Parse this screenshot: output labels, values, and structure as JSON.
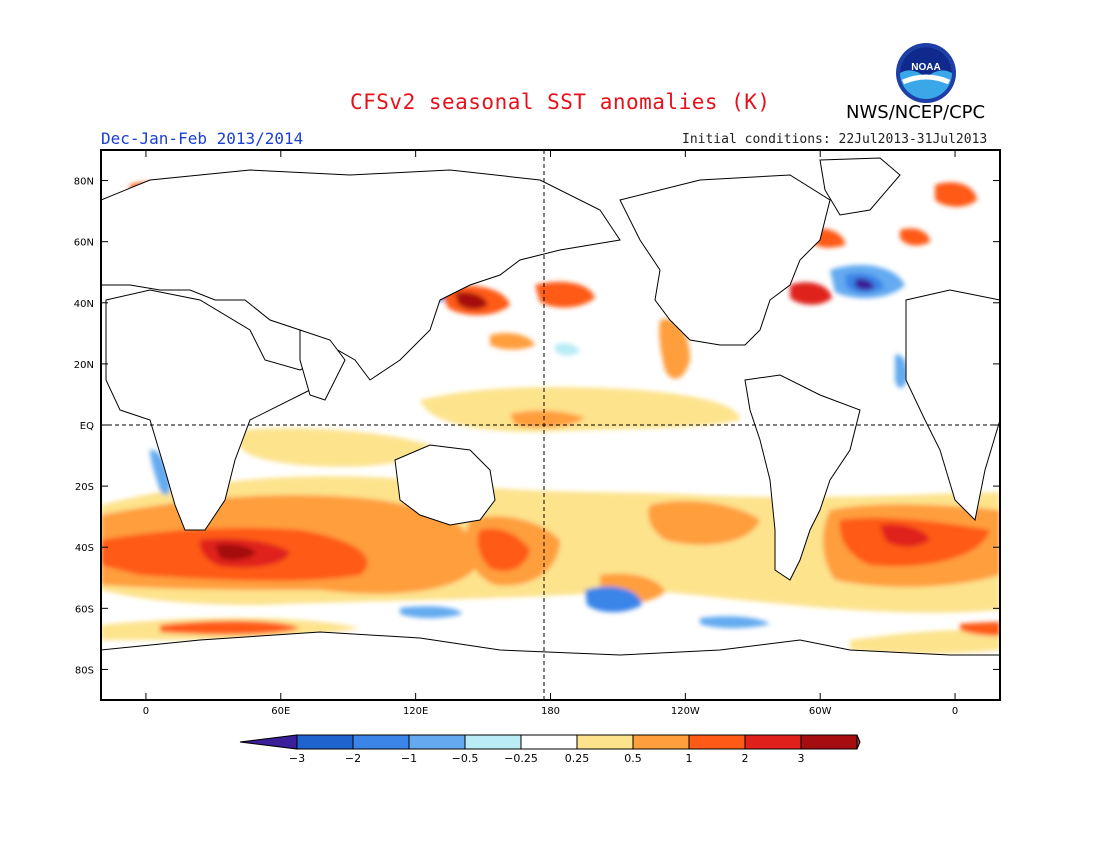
{
  "title": "CFSv2 seasonal SST anomalies (K)",
  "organization": "NWS/NCEP/CPC",
  "logo_text": "NOAA",
  "season_label": "Dec-Jan-Feb 2013/2014",
  "initial_conditions": "Initial conditions: 22Jul2013-31Jul2013",
  "map": {
    "projection": "equirectangular",
    "lon_range": [
      -20,
      380
    ],
    "lat_range": [
      -90,
      90
    ],
    "lat_ticks": [
      "80N",
      "60N",
      "40N",
      "20N",
      "EQ",
      "20S",
      "40S",
      "60S",
      "80S"
    ],
    "lon_ticks": [
      "0",
      "60E",
      "120E",
      "180",
      "120W",
      "60W",
      "0"
    ],
    "reference_lines": [
      "equator",
      "date line 180"
    ]
  },
  "colorbar": {
    "levels": [
      "-3",
      "-2",
      "-1",
      "-0.5",
      "-0.25",
      "0.25",
      "0.5",
      "1",
      "2",
      "3"
    ],
    "colors": [
      "#3a1e9a",
      "#1f63cf",
      "#3b84e8",
      "#63aaf0",
      "#b9ecf5",
      "#ffffff",
      "#fde38c",
      "#ff9e3d",
      "#ff5a16",
      "#e0201b",
      "#a50d10",
      "#7d5143"
    ]
  },
  "anomaly_regions": [
    {
      "name": "Southern Ocean band south of Indian Ocean",
      "level": "1 to 2"
    },
    {
      "name": "South Atlantic warm patch",
      "level": "1 to 2"
    },
    {
      "name": "Northwest Pacific near Japan",
      "level": "2 to 3"
    },
    {
      "name": "Equatorial central Pacific",
      "level": "0.5 to 1"
    },
    {
      "name": "Northwest Atlantic cold patch",
      "level": "-1 to -3"
    },
    {
      "name": "South Pacific cold patch near 60S",
      "level": "-0.5 to -1"
    }
  ]
}
